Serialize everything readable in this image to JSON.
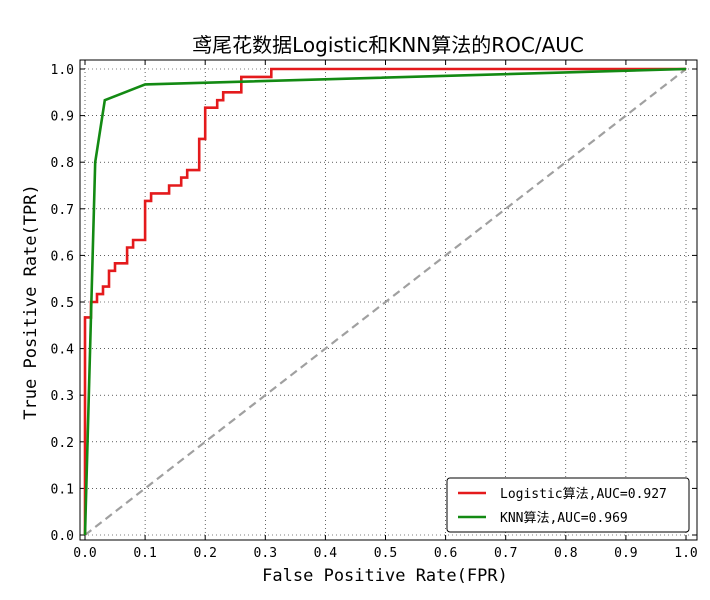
{
  "chart_data": {
    "type": "line",
    "title": "鸢尾花数据Logistic和KNN算法的ROC/AUC",
    "xlabel": "False Positive Rate(FPR)",
    "ylabel": "True Positive Rate(TPR)",
    "xlim": [
      0,
      1
    ],
    "ylim": [
      0,
      1
    ],
    "xticks": [
      "0.0",
      "0.1",
      "0.2",
      "0.3",
      "0.4",
      "0.5",
      "0.6",
      "0.7",
      "0.8",
      "0.9",
      "1.0"
    ],
    "yticks": [
      "0.0",
      "0.1",
      "0.2",
      "0.3",
      "0.4",
      "0.5",
      "0.6",
      "0.7",
      "0.8",
      "0.9",
      "1.0"
    ],
    "grid": true,
    "legend_position": "bottom-right",
    "series": [
      {
        "name": "Logistic算法,AUC=0.927",
        "color": "#e41a1c",
        "style": "solid",
        "x": [
          0,
          0,
          0.01,
          0.01,
          0.02,
          0.02,
          0.03,
          0.03,
          0.04,
          0.04,
          0.05,
          0.05,
          0.07,
          0.07,
          0.08,
          0.08,
          0.1,
          0.1,
          0.11,
          0.11,
          0.14,
          0.14,
          0.16,
          0.16,
          0.17,
          0.17,
          0.19,
          0.19,
          0.2,
          0.2,
          0.22,
          0.22,
          0.23,
          0.23,
          0.26,
          0.26,
          0.31,
          0.31,
          1.0
        ],
        "y": [
          0,
          0.467,
          0.467,
          0.5,
          0.5,
          0.517,
          0.517,
          0.533,
          0.533,
          0.567,
          0.567,
          0.583,
          0.583,
          0.617,
          0.617,
          0.633,
          0.633,
          0.717,
          0.717,
          0.733,
          0.733,
          0.75,
          0.75,
          0.767,
          0.767,
          0.783,
          0.783,
          0.85,
          0.85,
          0.917,
          0.917,
          0.933,
          0.933,
          0.95,
          0.95,
          0.983,
          0.983,
          1.0,
          1.0
        ]
      },
      {
        "name": "KNN算法,AUC=0.969",
        "color": "#138a13",
        "style": "solid",
        "x": [
          0,
          0.017,
          0.033,
          0.1,
          1.0
        ],
        "y": [
          0,
          0.8,
          0.933,
          0.967,
          1.0
        ]
      },
      {
        "color": "#a0a0a0",
        "style": "dashed",
        "x": [
          0,
          1
        ],
        "y": [
          0,
          1
        ]
      }
    ]
  }
}
